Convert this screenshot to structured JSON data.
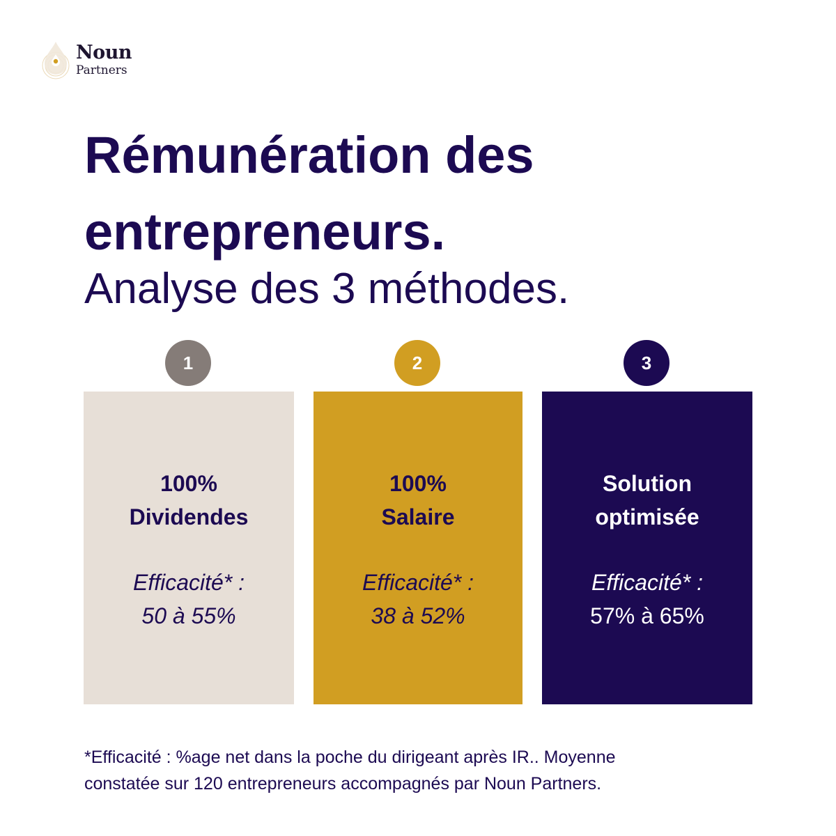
{
  "logo": {
    "line1": "Noun",
    "line2": "Partners",
    "icon": "drop-logo-icon"
  },
  "title": {
    "line1": "Rémunération des",
    "line2": "entrepreneurs."
  },
  "subtitle": "Analyse des 3 méthodes.",
  "colors": {
    "navy": "#1c0a52",
    "gray_badge": "#857c78",
    "beige_card": "#e7dfd7",
    "gold": "#d19e22"
  },
  "methods": [
    {
      "number": "1",
      "title_line1": "100%",
      "title_line2": "Dividendes",
      "efficacy_label": "Efficacité* :",
      "efficacy_value": "50 à 55%"
    },
    {
      "number": "2",
      "title_line1": "100%",
      "title_line2": "Salaire",
      "efficacy_label": "Efficacité* :",
      "efficacy_value": "38 à 52%"
    },
    {
      "number": "3",
      "title_line1": "Solution",
      "title_line2": "optimisée",
      "efficacy_label": "Efficacité* :",
      "efficacy_value": "57% à 65%"
    }
  ],
  "footnote": {
    "line1": "*Efficacité : %age net dans la poche du dirigeant après IR..  Moyenne",
    "line2": "constatée sur 120 entrepreneurs accompagnés par Noun Partners."
  }
}
